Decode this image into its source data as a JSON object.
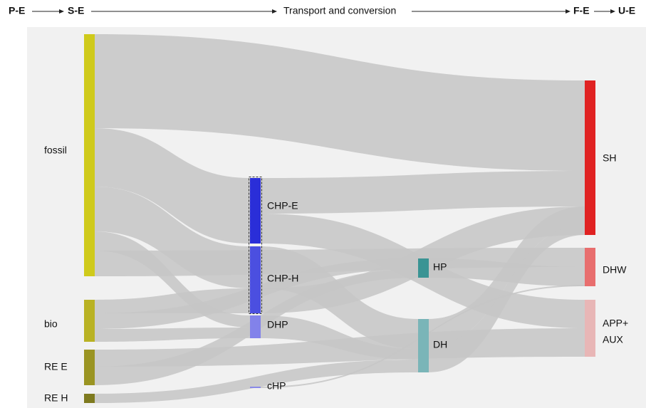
{
  "header": {
    "stages": [
      "P-E",
      "S-E",
      "Transport and conversion",
      "F-E",
      "U-E"
    ]
  },
  "nodes": [
    {
      "label": "fossil"
    },
    {
      "label": "bio"
    },
    {
      "label": "RE E"
    },
    {
      "label": "RE H"
    },
    {
      "label": "CHP-E"
    },
    {
      "label": "CHP-H"
    },
    {
      "label": "DHP"
    },
    {
      "label": "cHP"
    },
    {
      "label": "HP"
    },
    {
      "label": "DH"
    },
    {
      "label": "SH"
    },
    {
      "label": "DHW"
    },
    {
      "label_lines": [
        "APP+",
        "AUX"
      ]
    }
  ]
}
